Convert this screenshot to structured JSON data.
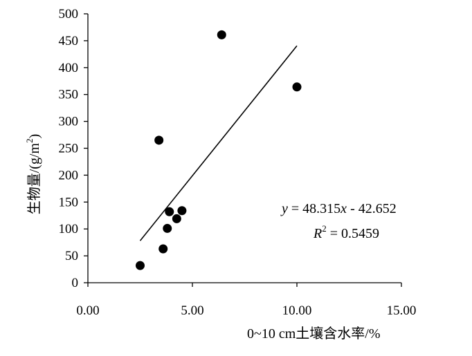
{
  "chart_data": {
    "type": "scatter",
    "xlabel_prefix": "0~10 cm",
    "xlabel_main": "土壤含水率/%",
    "ylabel_main": "生物量/(g/m",
    "ylabel_sup": "2",
    "ylabel_close": ")",
    "xlim": [
      0,
      15
    ],
    "ylim": [
      0,
      500
    ],
    "x_ticks": [
      "0.00",
      "5.00",
      "10.00",
      "15.00"
    ],
    "x_tick_values": [
      0,
      5,
      10,
      15
    ],
    "y_ticks": [
      "0",
      "50",
      "100",
      "150",
      "200",
      "250",
      "300",
      "350",
      "400",
      "450",
      "500"
    ],
    "y_tick_values": [
      0,
      50,
      100,
      150,
      200,
      250,
      300,
      350,
      400,
      450,
      500
    ],
    "grid": false,
    "points": [
      {
        "x": 2.5,
        "y": 32
      },
      {
        "x": 3.4,
        "y": 265
      },
      {
        "x": 3.6,
        "y": 63
      },
      {
        "x": 3.8,
        "y": 101
      },
      {
        "x": 3.9,
        "y": 132
      },
      {
        "x": 4.25,
        "y": 119
      },
      {
        "x": 4.5,
        "y": 134
      },
      {
        "x": 6.4,
        "y": 461
      },
      {
        "x": 10.0,
        "y": 364
      }
    ],
    "trendline": {
      "type": "linear",
      "slope": 48.315,
      "intercept": -42.652,
      "x_range": [
        2.5,
        10.0
      ]
    },
    "equation": {
      "y_symbol": "y",
      "eq_rest": " = 48.315",
      "x_symbol": "x",
      "eq_tail": " - 42.652",
      "r_symbol": "R",
      "r_sup": "2",
      "r_value": " = 0.5459"
    },
    "marker_color": "#000000"
  }
}
